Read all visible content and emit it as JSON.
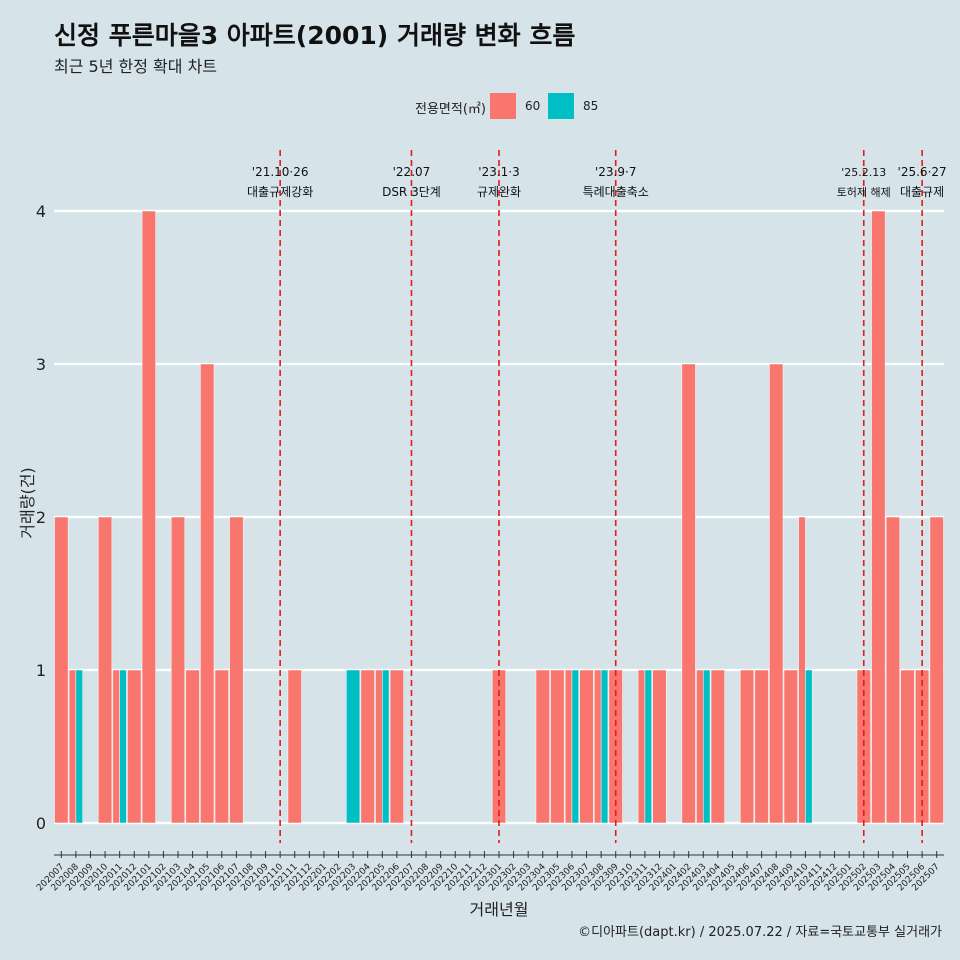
{
  "colors": {
    "background": "#d6e4ea",
    "series_60": "#f8766d",
    "series_85": "#00bfc4",
    "event_line": "#e41a1c",
    "grid": "#ffffff"
  },
  "caption": "©디아파트(dapt.kr) / 2025.07.22 / 자료=국토교통부 실거래가",
  "chart_data": {
    "type": "bar",
    "stacked": false,
    "title": "신정 푸른마을3 아파트(2001) 거래량 변화 흐름",
    "subtitle": "최근 5년 한정 확대 차트",
    "xlabel": "거래년월",
    "ylabel": "거래량(건)",
    "ylim": [
      0,
      4
    ],
    "yticks": [
      0,
      1,
      2,
      3,
      4
    ],
    "legend": {
      "title": "전용면적(㎡)",
      "position": "top",
      "entries": [
        "60",
        "85"
      ]
    },
    "categories": [
      "202007",
      "202008",
      "202009",
      "202010",
      "202011",
      "202012",
      "202101",
      "202102",
      "202103",
      "202104",
      "202105",
      "202106",
      "202107",
      "202108",
      "202109",
      "202110",
      "202111",
      "202112",
      "202201",
      "202202",
      "202203",
      "202204",
      "202205",
      "202206",
      "202207",
      "202208",
      "202209",
      "202210",
      "202211",
      "202212",
      "202301",
      "202302",
      "202303",
      "202304",
      "202305",
      "202306",
      "202307",
      "202308",
      "202309",
      "202310",
      "202311",
      "202312",
      "202401",
      "202402",
      "202403",
      "202404",
      "202405",
      "202406",
      "202407",
      "202408",
      "202409",
      "202410",
      "202411",
      "202412",
      "202501",
      "202502",
      "202503",
      "202504",
      "202505",
      "202506",
      "202507"
    ],
    "series": [
      {
        "name": "60",
        "values": [
          2,
          1,
          0,
          2,
          1,
          1,
          4,
          0,
          2,
          1,
          3,
          1,
          2,
          0,
          0,
          0,
          1,
          0,
          0,
          0,
          0,
          1,
          1,
          1,
          0,
          0,
          0,
          0,
          0,
          0,
          1,
          0,
          0,
          1,
          1,
          1,
          1,
          1,
          1,
          0,
          1,
          1,
          0,
          3,
          1,
          1,
          0,
          1,
          1,
          3,
          1,
          2,
          0,
          0,
          0,
          1,
          4,
          2,
          1,
          1,
          2
        ]
      },
      {
        "name": "85",
        "values": [
          0,
          1,
          0,
          0,
          1,
          0,
          0,
          0,
          0,
          0,
          0,
          0,
          0,
          0,
          0,
          0,
          0,
          0,
          0,
          0,
          1,
          0,
          1,
          0,
          0,
          0,
          0,
          0,
          0,
          0,
          0,
          0,
          0,
          0,
          0,
          1,
          0,
          1,
          0,
          0,
          1,
          0,
          0,
          0,
          1,
          0,
          0,
          0,
          0,
          0,
          0,
          1,
          0,
          0,
          0,
          0,
          0,
          0,
          0,
          0,
          0
        ]
      }
    ],
    "events": [
      {
        "at": "202110",
        "date": "'21.10·26",
        "label": "대출규제강화"
      },
      {
        "at": "202207",
        "date": "'22.07",
        "label": "DSR 3단계"
      },
      {
        "at": "202301",
        "date": "'23.1·3",
        "label": "규제완화"
      },
      {
        "at": "202309",
        "date": "'23.9·7",
        "label": "특례대출축소"
      },
      {
        "at": "202502",
        "date": "'25.2.13",
        "label": "토허제 해제"
      },
      {
        "at": "202506",
        "date": "'25.6·27",
        "label": "대출규제"
      }
    ]
  }
}
